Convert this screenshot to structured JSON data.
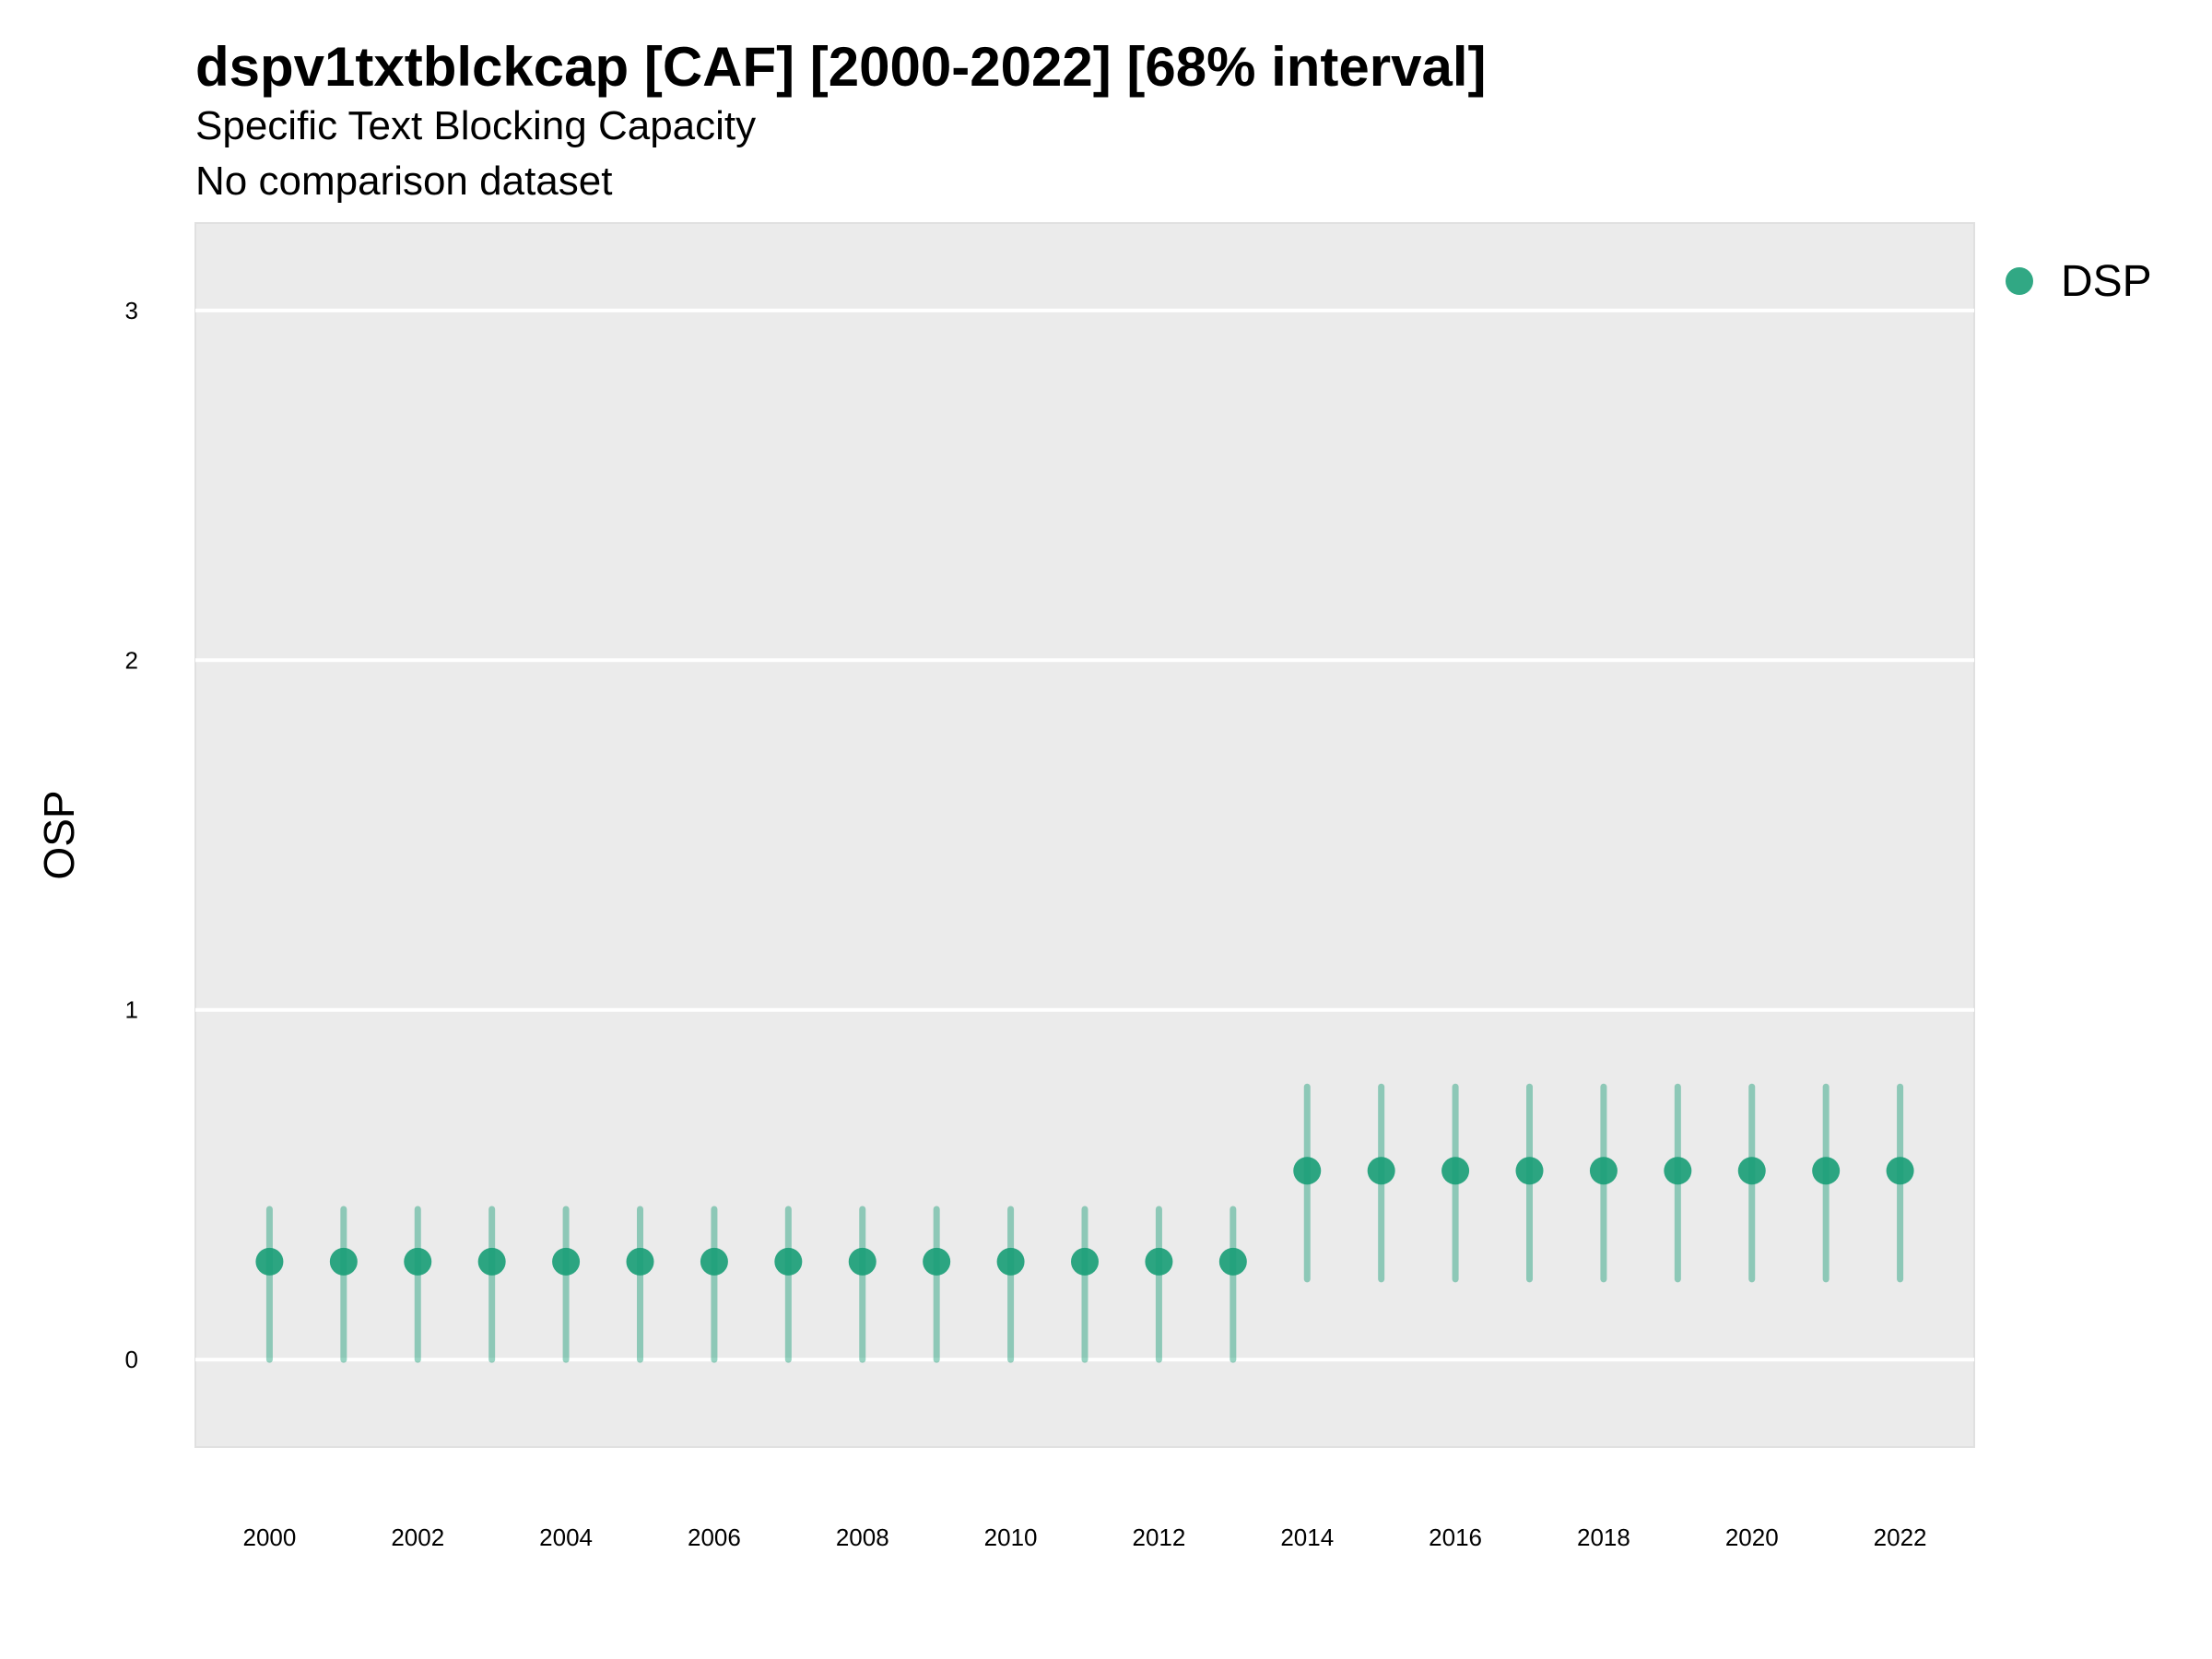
{
  "title": "dspv1txtblckcap [CAF] [2000-2022] [68% interval]",
  "subtitle_lines": [
    "Specific Text Blocking Capacity",
    "No comparison dataset"
  ],
  "colors": {
    "series": "#1b9e77",
    "panel": "#ebebeb",
    "grid": "#ffffff"
  },
  "chart_data": {
    "type": "scatter",
    "title": "dspv1txtblckcap [CAF] [2000-2022] [68% interval]",
    "xlabel": "",
    "ylabel": "OSP",
    "xlim": [
      1999,
      2023
    ],
    "ylim": [
      -0.25,
      3.25
    ],
    "x_ticks": [
      2000,
      2002,
      2004,
      2006,
      2008,
      2010,
      2012,
      2014,
      2016,
      2018,
      2020,
      2022
    ],
    "y_ticks": [
      0,
      1,
      2,
      3
    ],
    "grid": true,
    "legend_position": "right",
    "series": [
      {
        "name": "DSP",
        "x": [
          2000,
          2001,
          2002,
          2003,
          2004,
          2005,
          2006,
          2007,
          2008,
          2009,
          2010,
          2011,
          2012,
          2013,
          2014,
          2015,
          2016,
          2017,
          2018,
          2019,
          2020,
          2021,
          2022
        ],
        "y": [
          0.28,
          0.28,
          0.28,
          0.28,
          0.28,
          0.28,
          0.28,
          0.28,
          0.28,
          0.28,
          0.28,
          0.28,
          0.28,
          0.28,
          0.54,
          0.54,
          0.54,
          0.54,
          0.54,
          0.54,
          0.54,
          0.54,
          0.54
        ],
        "lower": [
          0.0,
          0.0,
          0.0,
          0.0,
          0.0,
          0.0,
          0.0,
          0.0,
          0.0,
          0.0,
          0.0,
          0.0,
          0.0,
          0.0,
          0.23,
          0.23,
          0.23,
          0.23,
          0.23,
          0.23,
          0.23,
          0.23,
          0.23
        ],
        "upper": [
          0.43,
          0.43,
          0.43,
          0.43,
          0.43,
          0.43,
          0.43,
          0.43,
          0.43,
          0.43,
          0.43,
          0.43,
          0.43,
          0.43,
          0.78,
          0.78,
          0.78,
          0.78,
          0.78,
          0.78,
          0.78,
          0.78,
          0.78
        ]
      }
    ]
  }
}
